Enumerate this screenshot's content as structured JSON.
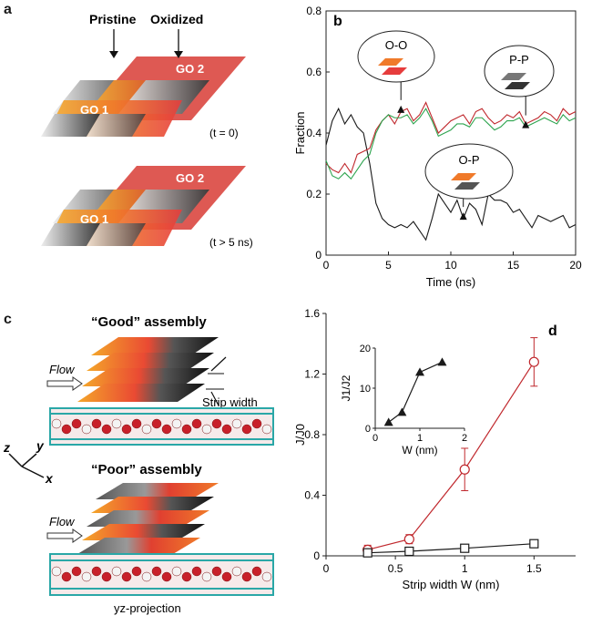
{
  "panel_a": {
    "label": "a",
    "pristine": "Pristine",
    "oxidized": "Oxidized",
    "top_sheet": {
      "go1": "GO 1",
      "go2": "GO 2",
      "time": "(t = 0)"
    },
    "bottom_sheet": {
      "go1": "GO 1",
      "go2": "GO 2",
      "time": "(t > 5 ns)"
    }
  },
  "panel_c": {
    "label": "c",
    "good": "“Good” assembly",
    "poor": "“Poor” assembly",
    "flow": "Flow",
    "strip_width": "Strip width",
    "axis_z": "z",
    "axis_y": "y",
    "axis_x": "x",
    "projection": "yz-projection"
  },
  "colors": {
    "oxidized_red": "#e63c3c",
    "oxidized_orange": "#f07a2a",
    "pristine_gray": "#555555",
    "teal": "#2aa7a7",
    "series_black": "#1a1a1a",
    "series_red": "#c0282d",
    "series_green": "#2ea44f"
  },
  "chart_data": [
    {
      "id": "b",
      "label": "b",
      "type": "line",
      "xlabel": "Time (ns)",
      "ylabel": "Fraction",
      "xlim": [
        0,
        20
      ],
      "ylim": [
        0,
        0.8
      ],
      "xticks": [
        0,
        5,
        10,
        15,
        20
      ],
      "yticks": [
        0,
        0.2,
        0.4,
        0.6,
        0.8
      ],
      "series": [
        {
          "color": "#1a1a1a",
          "x": [
            0,
            0.5,
            1,
            1.5,
            2,
            2.5,
            3,
            3.5,
            4,
            4.5,
            5,
            5.5,
            6,
            6.5,
            7,
            7.5,
            8,
            8.5,
            9,
            9.5,
            10,
            10.5,
            11,
            11.5,
            12,
            12.5,
            13,
            13.5,
            14,
            14.5,
            15,
            15.5,
            16,
            16.5,
            17,
            17.5,
            18,
            18.5,
            19,
            19.5,
            20
          ],
          "y": [
            0.36,
            0.44,
            0.48,
            0.43,
            0.46,
            0.42,
            0.4,
            0.3,
            0.17,
            0.12,
            0.1,
            0.09,
            0.1,
            0.09,
            0.11,
            0.08,
            0.05,
            0.12,
            0.2,
            0.17,
            0.14,
            0.18,
            0.12,
            0.17,
            0.15,
            0.1,
            0.2,
            0.18,
            0.18,
            0.17,
            0.14,
            0.15,
            0.12,
            0.09,
            0.13,
            0.12,
            0.11,
            0.12,
            0.13,
            0.09,
            0.1
          ]
        },
        {
          "color": "#c0282d",
          "x": [
            0,
            0.5,
            1,
            1.5,
            2,
            2.5,
            3,
            3.5,
            4,
            4.5,
            5,
            5.5,
            6,
            6.5,
            7,
            7.5,
            8,
            8.5,
            9,
            9.5,
            10,
            10.5,
            11,
            11.5,
            12,
            12.5,
            13,
            13.5,
            14,
            14.5,
            15,
            15.5,
            16,
            16.5,
            17,
            17.5,
            18,
            18.5,
            19,
            19.5,
            20
          ],
          "y": [
            0.3,
            0.28,
            0.27,
            0.3,
            0.27,
            0.33,
            0.34,
            0.35,
            0.41,
            0.44,
            0.46,
            0.43,
            0.47,
            0.48,
            0.44,
            0.46,
            0.5,
            0.45,
            0.4,
            0.42,
            0.44,
            0.45,
            0.46,
            0.43,
            0.47,
            0.48,
            0.45,
            0.43,
            0.44,
            0.46,
            0.45,
            0.47,
            0.43,
            0.44,
            0.45,
            0.47,
            0.46,
            0.44,
            0.48,
            0.46,
            0.47
          ]
        },
        {
          "color": "#2ea44f",
          "x": [
            0,
            0.5,
            1,
            1.5,
            2,
            2.5,
            3,
            3.5,
            4,
            4.5,
            5,
            5.5,
            6,
            6.5,
            7,
            7.5,
            8,
            8.5,
            9,
            9.5,
            10,
            10.5,
            11,
            11.5,
            12,
            12.5,
            13,
            13.5,
            14,
            14.5,
            15,
            15.5,
            16,
            16.5,
            17,
            17.5,
            18,
            18.5,
            19,
            19.5,
            20
          ],
          "y": [
            0.31,
            0.26,
            0.25,
            0.27,
            0.25,
            0.28,
            0.31,
            0.33,
            0.4,
            0.44,
            0.46,
            0.45,
            0.45,
            0.46,
            0.43,
            0.45,
            0.48,
            0.44,
            0.39,
            0.4,
            0.41,
            0.43,
            0.43,
            0.42,
            0.45,
            0.45,
            0.43,
            0.41,
            0.42,
            0.44,
            0.44,
            0.45,
            0.42,
            0.43,
            0.44,
            0.45,
            0.44,
            0.43,
            0.46,
            0.44,
            0.45
          ]
        }
      ],
      "annotations": [
        {
          "text": "O-O",
          "x": 6,
          "y": 0.49
        },
        {
          "text": "P-P",
          "x": 16,
          "y": 0.44
        },
        {
          "text": "O-P",
          "x": 11,
          "y": 0.14
        }
      ]
    },
    {
      "id": "d",
      "label": "d",
      "type": "line",
      "xlabel": "Strip width W (nm)",
      "ylabel": "J/J0",
      "xlim": [
        0,
        1.8
      ],
      "ylim": [
        0,
        1.6
      ],
      "xticks": [
        0,
        0.5,
        1,
        1.5
      ],
      "yticks": [
        0,
        0.4,
        0.8,
        1.2,
        1.6
      ],
      "series": [
        {
          "color": "#c0282d",
          "marker": "circle",
          "x": [
            0.3,
            0.6,
            1.0,
            1.5
          ],
          "y": [
            0.04,
            0.11,
            0.57,
            1.28
          ],
          "err": [
            0.03,
            0.03,
            0.14,
            0.16
          ]
        },
        {
          "color": "#1a1a1a",
          "marker": "square",
          "x": [
            0.3,
            0.6,
            1.0,
            1.5
          ],
          "y": [
            0.02,
            0.03,
            0.05,
            0.08
          ],
          "err": [
            0.02,
            0.02,
            0.01,
            0.01
          ]
        }
      ],
      "inset": {
        "type": "line",
        "xlabel": "W (nm)",
        "ylabel": "J1/J2",
        "xlim": [
          0,
          2
        ],
        "ylim": [
          0,
          20
        ],
        "xticks": [
          0,
          1,
          2
        ],
        "yticks": [
          0,
          10,
          20
        ],
        "series": [
          {
            "color": "#1a1a1a",
            "marker": "triangle",
            "x": [
              0.3,
              0.6,
              1.0,
              1.5
            ],
            "y": [
              1.5,
              4,
              14,
              16.5
            ]
          }
        ]
      }
    }
  ]
}
